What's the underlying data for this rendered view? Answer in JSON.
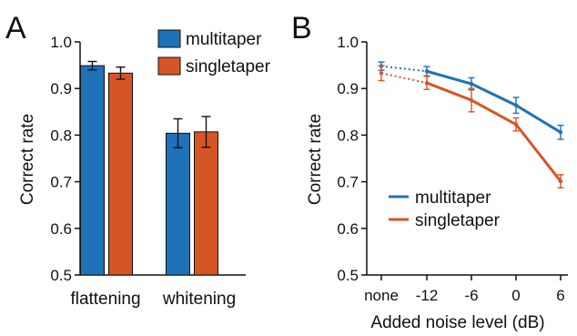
{
  "colors": {
    "multitaper": "#1f72b8",
    "singletaper": "#d65524",
    "axis": "#111111"
  },
  "chart_data": [
    {
      "type": "bar",
      "panel_label": "A",
      "ylabel": "Correct rate",
      "ylim": [
        0.5,
        1.0
      ],
      "yticks": [
        "0.5",
        "0.6",
        "0.7",
        "0.8",
        "0.9",
        "1.0"
      ],
      "categories": [
        "flattening",
        "whitening"
      ],
      "legend_placement": "top-right",
      "series": [
        {
          "name": "multitaper",
          "values": [
            0.949,
            0.804
          ],
          "errors": [
            0.009,
            0.031
          ]
        },
        {
          "name": "singletaper",
          "values": [
            0.933,
            0.807
          ],
          "errors": [
            0.013,
            0.033
          ]
        }
      ]
    },
    {
      "type": "line",
      "panel_label": "B",
      "xlabel": "Added noise level (dB)",
      "ylabel": "Correct rate",
      "ylim": [
        0.5,
        1.0
      ],
      "yticks": [
        "0.5",
        "0.6",
        "0.7",
        "0.8",
        "0.9",
        "1.0"
      ],
      "x": [
        "none",
        "-12",
        "-6",
        "0",
        "6"
      ],
      "legend_placement": "bottom-left",
      "series": [
        {
          "name": "multitaper",
          "values": [
            0.948,
            0.937,
            0.91,
            0.864,
            0.806
          ],
          "errors": [
            0.009,
            0.01,
            0.013,
            0.017,
            0.015
          ]
        },
        {
          "name": "singletaper",
          "values": [
            0.933,
            0.912,
            0.875,
            0.823,
            0.701
          ],
          "errors": [
            0.016,
            0.014,
            0.025,
            0.014,
            0.014
          ]
        }
      ]
    }
  ]
}
